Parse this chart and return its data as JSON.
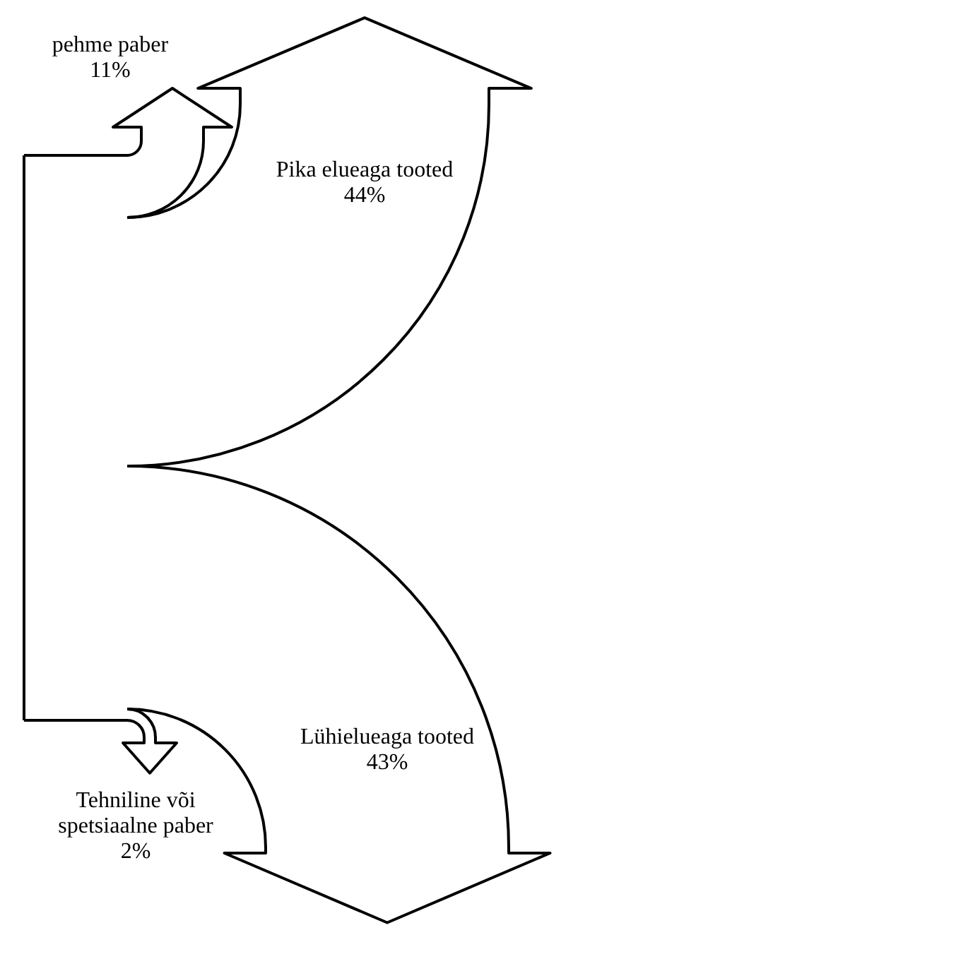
{
  "chart_data": {
    "type": "other",
    "categories": [
      "pehme paber",
      "Pika elueaga tooted",
      "Lühielueaga tooted",
      "Tehniline või spetsiaalne paber"
    ],
    "values": [
      11,
      44,
      43,
      2
    ],
    "value_labels": [
      "11%",
      "44%",
      "43%",
      "2%"
    ]
  }
}
